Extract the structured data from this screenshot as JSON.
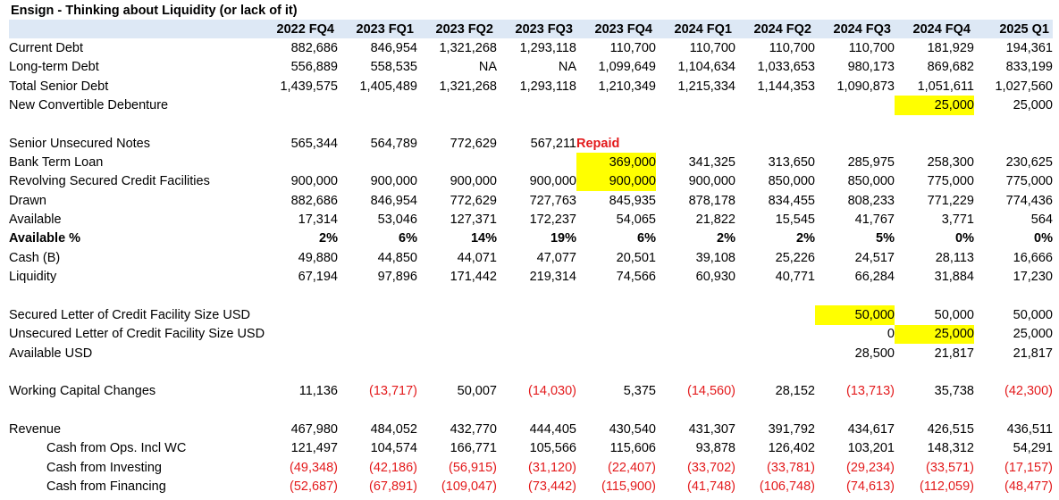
{
  "title": "Ensign - Thinking about Liquidity (or lack of it)",
  "columns": [
    "2022 FQ4",
    "2023 FQ1",
    "2023 FQ2",
    "2023 FQ3",
    "2023 FQ4",
    "2024 FQ1",
    "2024 FQ2",
    "2024 FQ3",
    "2024 FQ4",
    "2025 Q1"
  ],
  "colors": {
    "header_band": "#dde8f5",
    "highlight": "#ffff00",
    "negative": "#e31a1c"
  },
  "rows": [
    {
      "label": "Current Debt",
      "values": [
        "882,686",
        "846,954",
        "1,321,268",
        "1,293,118",
        "110,700",
        "110,700",
        "110,700",
        "110,700",
        "181,929",
        "194,361"
      ]
    },
    {
      "label": "Long-term Debt",
      "values": [
        "556,889",
        "558,535",
        "NA",
        "NA",
        "1,099,649",
        "1,104,634",
        "1,033,653",
        "980,173",
        "869,682",
        "833,199"
      ]
    },
    {
      "label": "Total Senior Debt",
      "values": [
        "1,439,575",
        "1,405,489",
        "1,321,268",
        "1,293,118",
        "1,210,349",
        "1,215,334",
        "1,144,353",
        "1,090,873",
        "1,051,611",
        "1,027,560"
      ]
    },
    {
      "label": "New Convertible Debenture",
      "values": [
        "",
        "",
        "",
        "",
        "",
        "",
        "",
        "",
        "25,000",
        "25,000"
      ]
    },
    {
      "label": "",
      "values": [
        "",
        "",
        "",
        "",
        "",
        "",
        "",
        "",
        "",
        ""
      ]
    },
    {
      "label": "Senior Unsecured Notes",
      "values": [
        "565,344",
        "564,789",
        "772,629",
        "567,211",
        "Repaid",
        "",
        "",
        "",
        "",
        ""
      ]
    },
    {
      "label": "Bank Term Loan",
      "values": [
        "",
        "",
        "",
        "",
        "369,000",
        "341,325",
        "313,650",
        "285,975",
        "258,300",
        "230,625"
      ]
    },
    {
      "label": "Revolving Secured Credit Facilities",
      "values": [
        "900,000",
        "900,000",
        "900,000",
        "900,000",
        "900,000",
        "900,000",
        "850,000",
        "850,000",
        "775,000",
        "775,000"
      ]
    },
    {
      "label": "Drawn",
      "values": [
        "882,686",
        "846,954",
        "772,629",
        "727,763",
        "845,935",
        "878,178",
        "834,455",
        "808,233",
        "771,229",
        "774,436"
      ]
    },
    {
      "label": "Available",
      "values": [
        "17,314",
        "53,046",
        "127,371",
        "172,237",
        "54,065",
        "21,822",
        "15,545",
        "41,767",
        "3,771",
        "564"
      ]
    },
    {
      "label": "Available %",
      "values": [
        "2%",
        "6%",
        "14%",
        "19%",
        "6%",
        "2%",
        "2%",
        "5%",
        "0%",
        "0%"
      ]
    },
    {
      "label": "Cash (B)",
      "values": [
        "49,880",
        "44,850",
        "44,071",
        "47,077",
        "20,501",
        "39,108",
        "25,226",
        "24,517",
        "28,113",
        "16,666"
      ]
    },
    {
      "label": "Liquidity",
      "values": [
        "67,194",
        "97,896",
        "171,442",
        "219,314",
        "74,566",
        "60,930",
        "40,771",
        "66,284",
        "31,884",
        "17,230"
      ]
    },
    {
      "label": "",
      "values": [
        "",
        "",
        "",
        "",
        "",
        "",
        "",
        "",
        "",
        ""
      ]
    },
    {
      "label": "Secured Letter of Credit Facility Size USD",
      "values": [
        "",
        "",
        "",
        "",
        "",
        "",
        "",
        "50,000",
        "50,000",
        "50,000"
      ]
    },
    {
      "label": "Unsecured Letter of Credit Facility Size USD",
      "values": [
        "",
        "",
        "",
        "",
        "",
        "",
        "",
        "0",
        "25,000",
        "25,000"
      ]
    },
    {
      "label": "Available USD",
      "values": [
        "",
        "",
        "",
        "",
        "",
        "",
        "",
        "28,500",
        "21,817",
        "21,817"
      ]
    },
    {
      "label": "",
      "values": [
        "",
        "",
        "",
        "",
        "",
        "",
        "",
        "",
        "",
        ""
      ]
    },
    {
      "label": "Working Capital Changes",
      "values": [
        "11,136",
        "(13,717)",
        "50,007",
        "(14,030)",
        "5,375",
        "(14,560)",
        "28,152",
        "(13,713)",
        "35,738",
        "(42,300)"
      ]
    },
    {
      "label": "",
      "values": [
        "",
        "",
        "",
        "",
        "",
        "",
        "",
        "",
        "",
        ""
      ]
    },
    {
      "label": "Revenue",
      "values": [
        "467,980",
        "484,052",
        "432,770",
        "444,405",
        "430,540",
        "431,307",
        "391,792",
        "434,617",
        "426,515",
        "436,511"
      ]
    },
    {
      "label": "Cash from Ops. Incl WC",
      "values": [
        "121,497",
        "104,574",
        "166,771",
        "105,566",
        "115,606",
        "93,878",
        "126,402",
        "103,201",
        "148,312",
        "54,291"
      ]
    },
    {
      "label": "Cash from Investing",
      "values": [
        "(49,348)",
        "(42,186)",
        "(56,915)",
        "(31,120)",
        "(22,407)",
        "(33,702)",
        "(33,781)",
        "(29,234)",
        "(33,571)",
        "(17,157)"
      ]
    },
    {
      "label": "Cash from Financing",
      "values": [
        "(52,687)",
        "(67,891)",
        "(109,047)",
        "(73,442)",
        "(115,900)",
        "(41,748)",
        "(106,748)",
        "(74,613)",
        "(112,059)",
        "(48,477)"
      ]
    }
  ]
}
